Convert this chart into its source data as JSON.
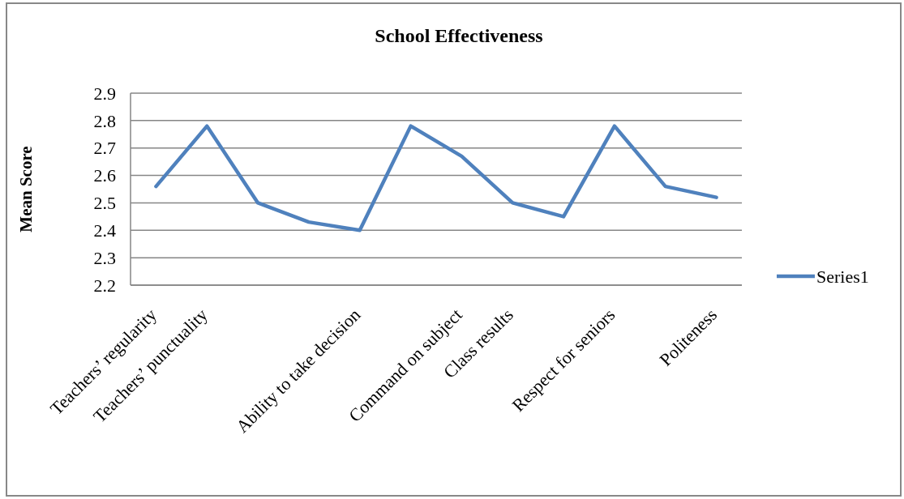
{
  "chart_data": {
    "type": "line",
    "title": "School Effectiveness",
    "ylabel": "Mean Score",
    "categories": [
      "Teachers’ regularity",
      "Teachers’ punctuality",
      null,
      null,
      "Ability to take decision",
      null,
      "Command on subject",
      "Class results",
      null,
      "Respect for seniors",
      null,
      "Politeness"
    ],
    "series": [
      {
        "name": "Series1",
        "color": "#4f81bd",
        "values": [
          2.56,
          2.78,
          2.5,
          2.43,
          2.4,
          2.78,
          2.67,
          2.5,
          2.45,
          2.78,
          2.56,
          2.52
        ]
      }
    ],
    "ylim": [
      2.2,
      2.9
    ],
    "yticks": [
      2.2,
      2.3,
      2.4,
      2.5,
      2.6,
      2.7,
      2.8,
      2.9
    ],
    "grid": "y",
    "legend": "right",
    "marker": "none",
    "line_style": "solid"
  }
}
